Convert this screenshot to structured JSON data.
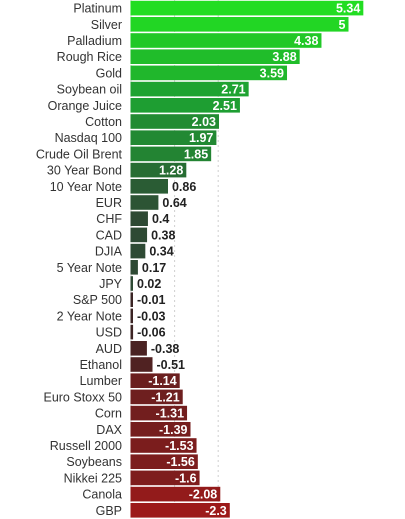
{
  "chart_data": {
    "type": "bar",
    "orientation": "horizontal",
    "title": "",
    "xlabel": "",
    "ylabel": "",
    "xlim": [
      -2.5,
      5.6
    ],
    "grid": true,
    "categories": [
      "Platinum",
      "Silver",
      "Palladium",
      "Rough Rice",
      "Gold",
      "Soybean oil",
      "Orange Juice",
      "Cotton",
      "Nasdaq 100",
      "Crude Oil Brent",
      "30 Year Bond",
      "10 Year Note",
      "EUR",
      "CHF",
      "CAD",
      "DJIA",
      "5 Year Note",
      "JPY",
      "S&P 500",
      "2 Year Note",
      "USD",
      "AUD",
      "Ethanol",
      "Lumber",
      "Euro Stoxx 50",
      "Corn",
      "DAX",
      "Russell 2000",
      "Soybeans",
      "Nikkei 225",
      "Canola",
      "GBP"
    ],
    "values": [
      5.34,
      5,
      4.38,
      3.88,
      3.59,
      2.71,
      2.51,
      2.03,
      1.97,
      1.85,
      1.28,
      0.86,
      0.64,
      0.4,
      0.38,
      0.34,
      0.17,
      0.02,
      -0.01,
      -0.03,
      -0.06,
      -0.38,
      -0.51,
      -1.14,
      -1.21,
      -1.31,
      -1.39,
      -1.53,
      -1.56,
      -1.6,
      -2.08,
      -2.3
    ],
    "value_labels": [
      "5.34",
      "5",
      "4.38",
      "3.88",
      "3.59",
      "2.71",
      "2.51",
      "2.03",
      "1.97",
      "1.85",
      "1.28",
      "0.86",
      "0.64",
      "0.4",
      "0.38",
      "0.34",
      "0.17",
      "0.02",
      "-0.01",
      "-0.03",
      "-0.06",
      "-0.38",
      "-0.51",
      "-1.14",
      "-1.21",
      "-1.31",
      "-1.39",
      "-1.53",
      "-1.56",
      "-1.6",
      "-2.08",
      "-2.3"
    ],
    "colors": {
      "positive_strong": "#22dd22",
      "positive_mid": "#1e9e32",
      "positive_weak": "#2e4a34",
      "negative_weak": "#3a2424",
      "negative_strong": "#9c1a1a"
    }
  }
}
